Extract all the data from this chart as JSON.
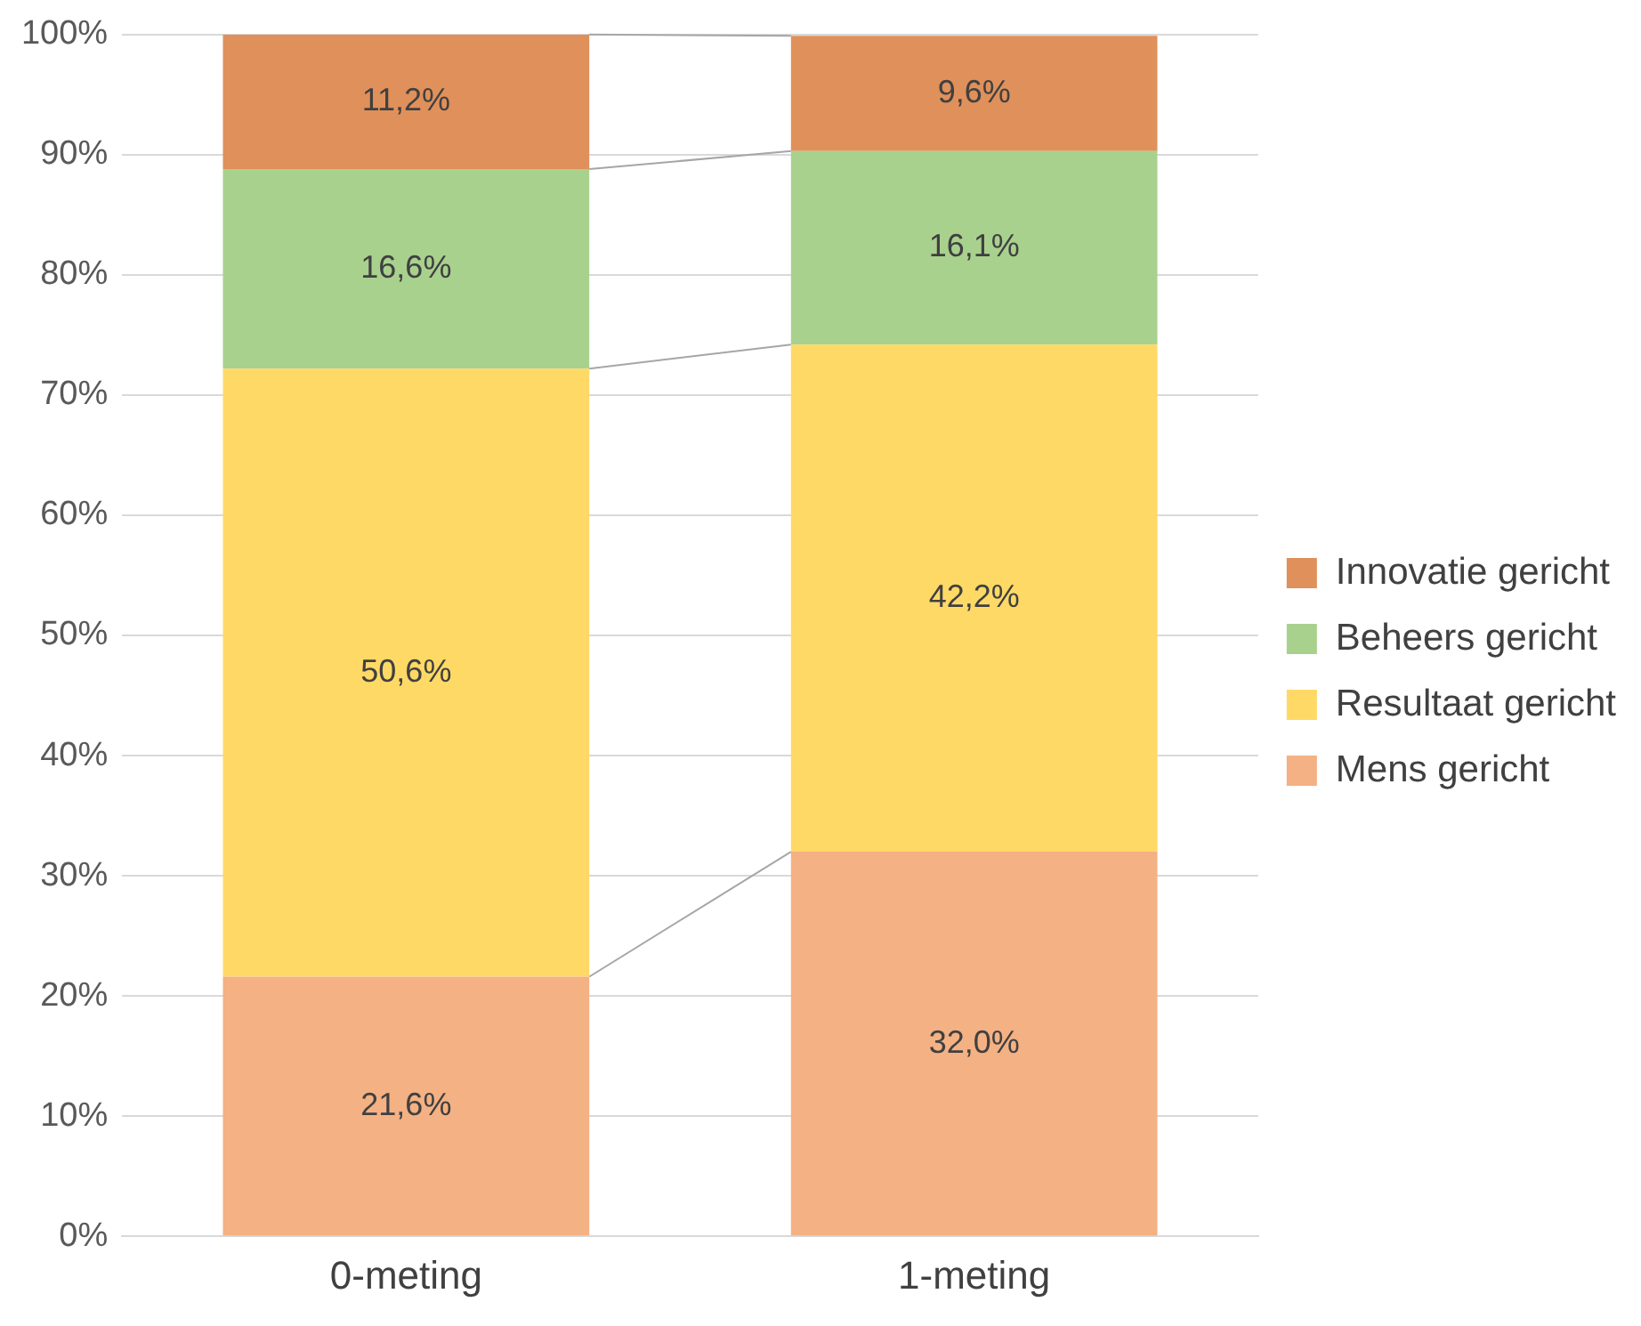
{
  "chart_data": {
    "type": "bar",
    "stacked": true,
    "categories": [
      "0-meting",
      "1-meting"
    ],
    "series": [
      {
        "name": "Mens gericht",
        "color": "#f4b183",
        "values": [
          21.6,
          32.0
        ],
        "value_labels": [
          "21,6%",
          "32,0%"
        ]
      },
      {
        "name": "Resultaat gericht",
        "color": "#ffd966",
        "values": [
          50.6,
          42.2
        ],
        "value_labels": [
          "50,6%",
          "42,2%"
        ]
      },
      {
        "name": "Beheers gericht",
        "color": "#a9d18e",
        "values": [
          16.6,
          16.1
        ],
        "value_labels": [
          "16,6%",
          "16,1%"
        ]
      },
      {
        "name": "Innovatie gericht",
        "color": "#e0905a",
        "values": [
          11.2,
          9.6
        ],
        "value_labels": [
          "11,2%",
          "9,6%"
        ]
      }
    ],
    "ylim": [
      0,
      100
    ],
    "yticks": [
      {
        "value": 0,
        "label": "0%"
      },
      {
        "value": 10,
        "label": "10%"
      },
      {
        "value": 20,
        "label": "20%"
      },
      {
        "value": 30,
        "label": "30%"
      },
      {
        "value": 40,
        "label": "40%"
      },
      {
        "value": 50,
        "label": "50%"
      },
      {
        "value": 60,
        "label": "60%"
      },
      {
        "value": 70,
        "label": "70%"
      },
      {
        "value": 80,
        "label": "80%"
      },
      {
        "value": 90,
        "label": "90%"
      },
      {
        "value": 100,
        "label": "100%"
      }
    ],
    "grid": "y",
    "legend": "right"
  }
}
